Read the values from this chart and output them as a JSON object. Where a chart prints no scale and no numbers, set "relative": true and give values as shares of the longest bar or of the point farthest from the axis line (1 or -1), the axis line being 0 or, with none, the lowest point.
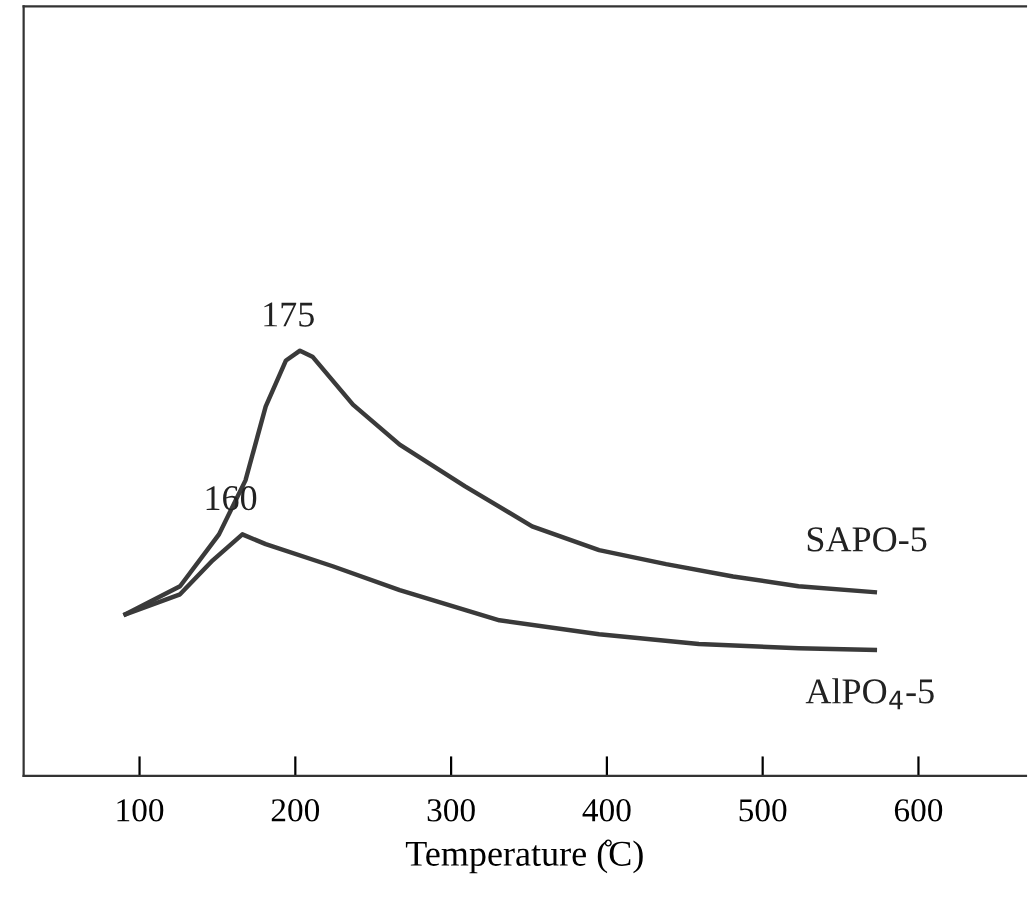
{
  "chart_data": {
    "type": "line",
    "relative": true,
    "xlabel": "Temperature (̊C)",
    "xlim": [
      25.6,
      669
    ],
    "xticks": [
      100,
      200,
      300,
      400,
      500,
      600
    ],
    "grid": false,
    "legend": false,
    "marker": "none",
    "line_style": "solid",
    "series": [
      {
        "name": "SAPO-5",
        "color": "#3a3a3a",
        "x": [
          91,
          126,
          151,
          168,
          181,
          194,
          203,
          211,
          237,
          267,
          309,
          352,
          395,
          438,
          481,
          523,
          572
        ],
        "values": [
          0.38,
          0.446,
          0.568,
          0.695,
          0.869,
          0.977,
          1.0,
          0.986,
          0.873,
          0.779,
          0.681,
          0.587,
          0.531,
          0.498,
          0.469,
          0.446,
          0.432
        ]
      },
      {
        "name": "AlPO$_{4}$-5",
        "color": "#3a3a3a",
        "x": [
          91,
          126,
          147,
          166,
          181,
          224,
          267,
          331,
          395,
          459,
          523,
          572
        ],
        "values": [
          0.38,
          0.427,
          0.507,
          0.568,
          0.545,
          0.493,
          0.437,
          0.366,
          0.333,
          0.31,
          0.3,
          0.296
        ]
      }
    ],
    "annotations": [
      {
        "text": "175",
        "x": 203,
        "y": 1.0
      },
      {
        "text": "160",
        "x": 166,
        "y": 0.568
      }
    ]
  }
}
